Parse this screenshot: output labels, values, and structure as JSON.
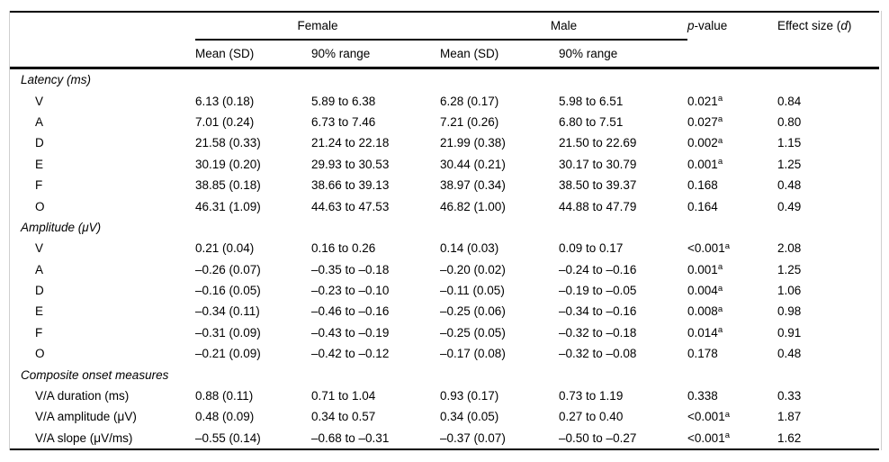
{
  "colors": {
    "text": "#000000",
    "background": "#ffffff",
    "rules": "#000000",
    "side_frame": "#cfcfcf"
  },
  "table": {
    "groups": [
      {
        "label": "Female"
      },
      {
        "label": "Male"
      }
    ],
    "sub_headers": [
      "Mean (SD)",
      "90% range",
      "Mean (SD)",
      "90% range"
    ],
    "p_value_header": {
      "italic_part": "p",
      "text_part": "-value"
    },
    "effect_size_header": {
      "text_pre": "Effect size (",
      "italic_part": "d",
      "text_post": ")"
    },
    "sections": [
      {
        "title": "Latency (ms)",
        "rows": [
          {
            "label": "V",
            "female_mean_sd": "6.13 (0.18)",
            "female_range": "5.89 to 6.38",
            "male_mean_sd": "6.28 (0.17)",
            "male_range": "5.98 to 6.51",
            "p_value": "0.021",
            "p_sup": "a",
            "effect_size": "0.84"
          },
          {
            "label": "A",
            "female_mean_sd": "7.01 (0.24)",
            "female_range": "6.73 to 7.46",
            "male_mean_sd": "7.21 (0.26)",
            "male_range": "6.80 to 7.51",
            "p_value": "0.027",
            "p_sup": "a",
            "effect_size": "0.80"
          },
          {
            "label": "D",
            "female_mean_sd": "21.58 (0.33)",
            "female_range": "21.24 to 22.18",
            "male_mean_sd": "21.99 (0.38)",
            "male_range": "21.50 to 22.69",
            "p_value": "0.002",
            "p_sup": "a",
            "effect_size": "1.15"
          },
          {
            "label": "E",
            "female_mean_sd": "30.19 (0.20)",
            "female_range": "29.93 to 30.53",
            "male_mean_sd": "30.44 (0.21)",
            "male_range": "30.17 to 30.79",
            "p_value": "0.001",
            "p_sup": "a",
            "effect_size": "1.25"
          },
          {
            "label": "F",
            "female_mean_sd": "38.85 (0.18)",
            "female_range": "38.66 to 39.13",
            "male_mean_sd": "38.97 (0.34)",
            "male_range": "38.50 to 39.37",
            "p_value": "0.168",
            "p_sup": "",
            "effect_size": "0.48"
          },
          {
            "label": "O",
            "female_mean_sd": "46.31 (1.09)",
            "female_range": "44.63 to 47.53",
            "male_mean_sd": "46.82 (1.00)",
            "male_range": "44.88 to 47.79",
            "p_value": "0.164",
            "p_sup": "",
            "effect_size": "0.49"
          }
        ]
      },
      {
        "title": "Amplitude (μV)",
        "rows": [
          {
            "label": "V",
            "female_mean_sd": "0.21 (0.04)",
            "female_range": "0.16 to 0.26",
            "male_mean_sd": "0.14 (0.03)",
            "male_range": "0.09 to 0.17",
            "p_value": "<0.001",
            "p_sup": "a",
            "effect_size": "2.08"
          },
          {
            "label": "A",
            "female_mean_sd": "–0.26 (0.07)",
            "female_range": "–0.35 to –0.18",
            "male_mean_sd": "–0.20 (0.02)",
            "male_range": "–0.24 to –0.16",
            "p_value": "0.001",
            "p_sup": "a",
            "effect_size": "1.25"
          },
          {
            "label": "D",
            "female_mean_sd": "–0.16 (0.05)",
            "female_range": "–0.23 to –0.10",
            "male_mean_sd": "–0.11 (0.05)",
            "male_range": "–0.19 to –0.05",
            "p_value": "0.004",
            "p_sup": "a",
            "effect_size": "1.06"
          },
          {
            "label": "E",
            "female_mean_sd": "–0.34 (0.11)",
            "female_range": "–0.46 to –0.16",
            "male_mean_sd": "–0.25 (0.06)",
            "male_range": "–0.34 to –0.16",
            "p_value": "0.008",
            "p_sup": "a",
            "effect_size": "0.98"
          },
          {
            "label": "F",
            "female_mean_sd": "–0.31 (0.09)",
            "female_range": "–0.43 to –0.19",
            "male_mean_sd": "–0.25 (0.05)",
            "male_range": "–0.32 to –0.18",
            "p_value": "0.014",
            "p_sup": "a",
            "effect_size": "0.91"
          },
          {
            "label": "O",
            "female_mean_sd": "–0.21 (0.09)",
            "female_range": "–0.42 to –0.12",
            "male_mean_sd": "–0.17 (0.08)",
            "male_range": "–0.32 to –0.08",
            "p_value": "0.178",
            "p_sup": "",
            "effect_size": "0.48"
          }
        ]
      },
      {
        "title": "Composite onset measures",
        "rows": [
          {
            "label": "V/A duration (ms)",
            "female_mean_sd": "0.88 (0.11)",
            "female_range": "0.71 to 1.04",
            "male_mean_sd": "0.93 (0.17)",
            "male_range": "0.73 to 1.19",
            "p_value": "0.338",
            "p_sup": "",
            "effect_size": "0.33"
          },
          {
            "label": "V/A amplitude (μV)",
            "female_mean_sd": "0.48 (0.09)",
            "female_range": "0.34 to 0.57",
            "male_mean_sd": "0.34 (0.05)",
            "male_range": "0.27 to 0.40",
            "p_value": "<0.001",
            "p_sup": "a",
            "effect_size": "1.87"
          },
          {
            "label": "V/A slope (μV/ms)",
            "female_mean_sd": "–0.55 (0.14)",
            "female_range": "–0.68 to –0.31",
            "male_mean_sd": "–0.37 (0.07)",
            "male_range": "–0.50 to –0.27",
            "p_value": "<0.001",
            "p_sup": "a",
            "effect_size": "1.62"
          }
        ]
      }
    ]
  }
}
